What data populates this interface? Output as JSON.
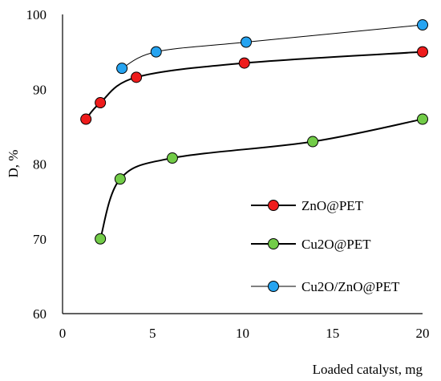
{
  "chart_data": {
    "type": "scatter",
    "title": "",
    "xlabel": "Loaded catalyst, mg",
    "ylabel": "D, %",
    "xlim": [
      0,
      20
    ],
    "ylim": [
      60,
      100
    ],
    "xticks": [
      0,
      5,
      10,
      15,
      20
    ],
    "yticks": [
      60,
      70,
      80,
      90,
      100
    ],
    "grid": false,
    "legend_position": "right",
    "series": [
      {
        "name": "ZnO@PET",
        "color": "#ee1c1c",
        "line_width": 2,
        "points": [
          [
            1.3,
            86
          ],
          [
            2.1,
            88.2
          ],
          [
            4.1,
            91.6
          ],
          [
            10.1,
            93.5
          ],
          [
            20,
            95
          ]
        ]
      },
      {
        "name": "Cu2O@PET",
        "color": "#72cc48",
        "line_width": 2,
        "points": [
          [
            2.1,
            70
          ],
          [
            3.2,
            78
          ],
          [
            6.1,
            80.8
          ],
          [
            13.9,
            83
          ],
          [
            20,
            86
          ]
        ]
      },
      {
        "name": "Cu2O/ZnO@PET",
        "color": "#26a4f1",
        "line_width": 1,
        "points": [
          [
            3.3,
            92.8
          ],
          [
            5.2,
            95
          ],
          [
            10.2,
            96.3
          ],
          [
            20,
            98.6
          ]
        ]
      }
    ]
  }
}
